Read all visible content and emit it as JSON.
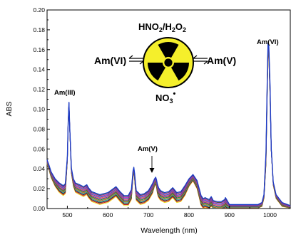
{
  "chart_data": {
    "type": "line",
    "title": "",
    "xlabel": "Wavelength (nm)",
    "ylabel": "ABS",
    "xlim": [
      450,
      1050
    ],
    "ylim": [
      0,
      0.2
    ],
    "xticks": [
      "500",
      "600",
      "700",
      "800",
      "900",
      "1000"
    ],
    "yticks": [
      "0.00",
      "0.02",
      "0.04",
      "0.06",
      "0.08",
      "0.10",
      "0.12",
      "0.14",
      "0.16",
      "0.18",
      "0.20"
    ],
    "grid": false,
    "legend": "none",
    "series_count": 12,
    "series_colors": [
      "#e8e020",
      "#d02020",
      "#303030",
      "#20a0a0",
      "#c06020",
      "#209020",
      "#8020a0",
      "#e05050",
      "#2060c0",
      "#c020c0",
      "#505050",
      "#1a3cc8"
    ],
    "series_baseline": {
      "x": [
        450,
        455,
        460,
        470,
        480,
        490,
        495,
        500,
        502,
        504,
        506,
        510,
        515,
        520,
        530,
        540,
        548,
        552,
        560,
        580,
        600,
        610,
        620,
        630,
        640,
        650,
        658,
        662,
        664,
        666,
        670,
        680,
        690,
        700,
        710,
        715,
        718,
        720,
        722,
        725,
        730,
        740,
        750,
        760,
        770,
        780,
        790,
        800,
        810,
        820,
        830,
        835,
        840,
        850,
        855,
        860,
        870,
        880,
        888,
        890,
        893,
        900,
        920,
        940,
        960,
        970,
        980,
        985,
        990,
        993,
        995,
        997,
        1000,
        1003,
        1008,
        1015,
        1030,
        1050
      ],
      "y": [
        0.047,
        0.041,
        0.034,
        0.026,
        0.021,
        0.018,
        0.02,
        0.05,
        0.085,
        0.106,
        0.08,
        0.038,
        0.026,
        0.021,
        0.019,
        0.017,
        0.019,
        0.016,
        0.012,
        0.009,
        0.011,
        0.014,
        0.017,
        0.012,
        0.008,
        0.008,
        0.014,
        0.035,
        0.039,
        0.032,
        0.013,
        0.009,
        0.01,
        0.013,
        0.02,
        0.026,
        0.028,
        0.025,
        0.02,
        0.016,
        0.013,
        0.011,
        0.012,
        0.016,
        0.011,
        0.012,
        0.018,
        0.026,
        0.031,
        0.024,
        0.008,
        0.005,
        0.006,
        0.004,
        0.007,
        0.003,
        0.002,
        0.002,
        0.004,
        0.006,
        0.004,
        0.002,
        0.002,
        0.002,
        0.002,
        0.002,
        0.004,
        0.012,
        0.05,
        0.12,
        0.16,
        0.158,
        0.12,
        0.06,
        0.025,
        0.012,
        0.004,
        0.001
      ]
    },
    "series_spread": 0.005
  },
  "annotations": {
    "am3": "Am(III)",
    "am5_lower": "Am(V)",
    "am6_right_peak": "Am(VI)",
    "equilibrium_left": "Am(VI)",
    "equilibrium_right": "Am(V)",
    "reagent": {
      "main": "HNO",
      "sub1": "2",
      "mid": "/H",
      "sub2": "2",
      "tail": "O",
      "sub3": "2"
    },
    "product": {
      "main": "NO",
      "sub": "3",
      "sup": "•"
    }
  },
  "colors": {
    "radiation_fill": "#f5ef2b",
    "radiation_symbol": "#000000",
    "axis": "#000000"
  },
  "icons": {
    "center": "radiation-trefoil-icon"
  }
}
